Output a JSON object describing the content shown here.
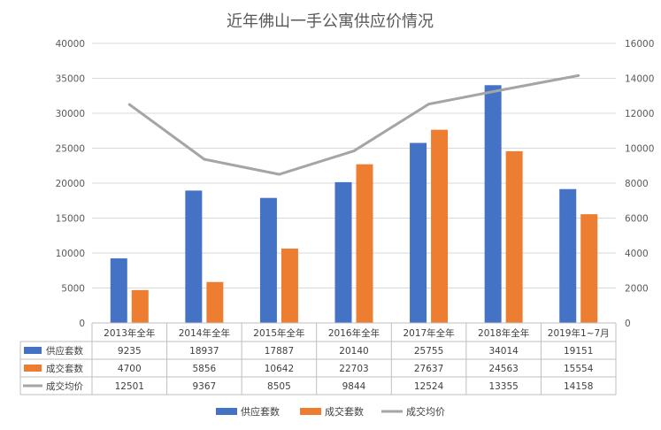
{
  "chart_data": {
    "type": "bar",
    "title": "近年佛山一手公寓供应价情况",
    "categories": [
      "2013年全年",
      "2014年全年",
      "2015年全年",
      "2016年全年",
      "2017年全年",
      "2018年全年",
      "2019年1~7月"
    ],
    "series": [
      {
        "name": "供应套数",
        "type": "bar",
        "axis": "left",
        "color": "#4472C4",
        "values": [
          9235,
          18937,
          17887,
          20140,
          25755,
          34014,
          19151
        ]
      },
      {
        "name": "成交套数",
        "type": "bar",
        "axis": "left",
        "color": "#ED7D31",
        "values": [
          4700,
          5856,
          10642,
          22703,
          27637,
          24563,
          15554
        ]
      },
      {
        "name": "成交均价",
        "type": "line",
        "axis": "right",
        "color": "#A5A5A5",
        "values": [
          12501,
          9367,
          8505,
          9844,
          12524,
          13355,
          14158
        ]
      }
    ],
    "y_left": {
      "min": 0,
      "max": 40000,
      "ticks": [
        "0",
        "5000",
        "10000",
        "15000",
        "20000",
        "25000",
        "30000",
        "35000",
        "40000"
      ]
    },
    "y_right": {
      "min": 0,
      "max": 16000,
      "ticks": [
        "0",
        "2000",
        "4000",
        "6000",
        "8000",
        "10000",
        "12000",
        "14000",
        "16000"
      ]
    },
    "grid": true,
    "legend_position": "bottom",
    "data_table": true
  }
}
